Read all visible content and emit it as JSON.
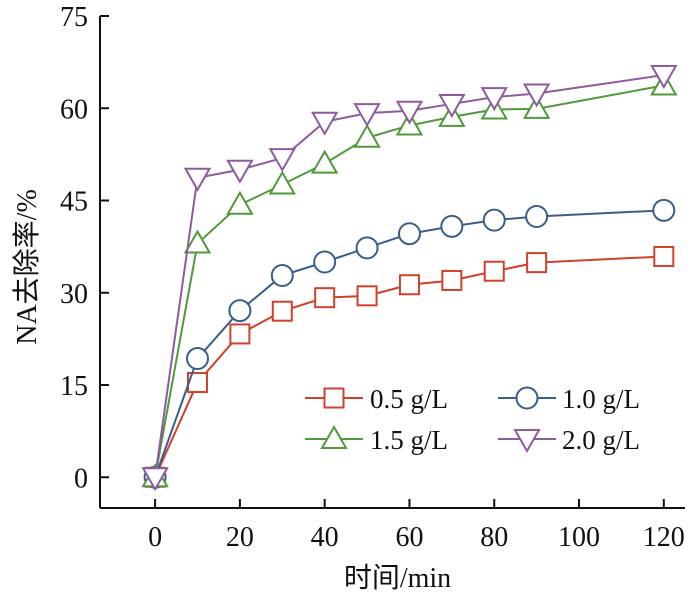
{
  "chart_data": {
    "type": "line",
    "xlabel": "时间/min",
    "ylabel": "NA去除率/%",
    "xlim": [
      -13,
      125
    ],
    "ylim": [
      -5,
      75
    ],
    "xticks": [
      0,
      20,
      40,
      60,
      80,
      100,
      120
    ],
    "yticks": [
      0,
      15,
      30,
      45,
      60,
      75
    ],
    "legend_placement": "bottom-right",
    "series": [
      {
        "name": "0.5 g/L",
        "marker": "square",
        "color": "#d0402b",
        "x": [
          0,
          10,
          20,
          30,
          40,
          50,
          60,
          70,
          80,
          90,
          120
        ],
        "y": [
          0,
          15.4,
          23.3,
          27.0,
          29.2,
          29.5,
          31.3,
          32.0,
          33.5,
          34.9,
          35.9
        ]
      },
      {
        "name": "1.0 g/L",
        "marker": "circle",
        "color": "#3a5e8c",
        "x": [
          0,
          10,
          20,
          30,
          40,
          50,
          60,
          70,
          80,
          90,
          120
        ],
        "y": [
          0,
          19.3,
          27.1,
          32.8,
          35.0,
          37.3,
          39.6,
          40.8,
          41.8,
          42.4,
          43.4
        ]
      },
      {
        "name": "1.5 g/L",
        "marker": "triangle-up",
        "color": "#4f9a3a",
        "x": [
          0,
          10,
          20,
          30,
          40,
          50,
          60,
          70,
          80,
          90,
          120
        ],
        "y": [
          0,
          38.0,
          44.3,
          47.6,
          51.0,
          55.2,
          57.2,
          58.6,
          59.8,
          59.9,
          63.7
        ]
      },
      {
        "name": "2.0 g/L",
        "marker": "triangle-down",
        "color": "#8e5aa0",
        "x": [
          0,
          10,
          20,
          30,
          40,
          50,
          60,
          70,
          80,
          90,
          120
        ],
        "y": [
          0,
          48.7,
          50.0,
          51.9,
          57.8,
          59.2,
          59.6,
          60.7,
          61.8,
          62.4,
          65.4
        ]
      }
    ]
  }
}
